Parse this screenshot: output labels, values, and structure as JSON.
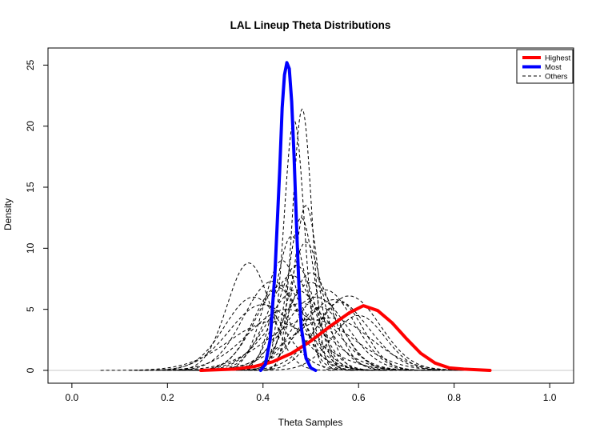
{
  "chart_data": {
    "type": "line",
    "title": "LAL Lineup Theta Distributions",
    "xlabel": "Theta Samples",
    "ylabel": "Density",
    "xlim": [
      -0.05,
      1.05
    ],
    "ylim": [
      -1.05,
      26.4
    ],
    "xticks": [
      0.0,
      0.2,
      0.4,
      0.6,
      0.8,
      1.0
    ],
    "xtick_labels": [
      "0.0",
      "0.2",
      "0.4",
      "0.6",
      "0.8",
      "1.0"
    ],
    "yticks": [
      0,
      5,
      10,
      15,
      20,
      25
    ],
    "ytick_labels": [
      "0",
      "5",
      "10",
      "15",
      "20",
      "25"
    ],
    "baseline": 0,
    "grid": false,
    "legend": {
      "position": "top-right",
      "entries": [
        {
          "label": "Highest",
          "color": "#ff0000",
          "style": "solid"
        },
        {
          "label": "Most",
          "color": "#0000ff",
          "style": "solid"
        },
        {
          "label": "Others",
          "color": "#000000",
          "style": "dashed"
        }
      ]
    },
    "series": [
      {
        "name": "Highest",
        "color": "#ff0000",
        "style": "solid",
        "x": [
          0.27,
          0.34,
          0.38,
          0.42,
          0.46,
          0.5,
          0.54,
          0.58,
          0.61,
          0.64,
          0.67,
          0.7,
          0.73,
          0.76,
          0.79,
          0.82,
          0.85,
          0.875
        ],
        "y": [
          0.0,
          0.1,
          0.3,
          0.7,
          1.4,
          2.4,
          3.6,
          4.7,
          5.3,
          4.9,
          3.9,
          2.6,
          1.4,
          0.6,
          0.2,
          0.1,
          0.05,
          0.0
        ]
      },
      {
        "name": "Most",
        "color": "#0000ff",
        "style": "solid",
        "x": [
          0.395,
          0.405,
          0.415,
          0.425,
          0.435,
          0.44,
          0.445,
          0.45,
          0.455,
          0.46,
          0.465,
          0.47,
          0.475,
          0.48,
          0.49,
          0.5,
          0.51
        ],
        "y": [
          0.0,
          0.5,
          2.5,
          8.0,
          16.5,
          21.5,
          24.2,
          25.2,
          24.7,
          22.0,
          17.5,
          12.0,
          7.0,
          3.5,
          1.0,
          0.2,
          0.0
        ]
      }
    ],
    "other_curves": [
      {
        "mu": 0.37,
        "sd": 0.045,
        "peak": 8.8
      },
      {
        "mu": 0.42,
        "sd": 0.06,
        "peak": 7.3
      },
      {
        "mu": 0.44,
        "sd": 0.055,
        "peak": 7.0
      },
      {
        "mu": 0.46,
        "sd": 0.05,
        "peak": 7.8
      },
      {
        "mu": 0.47,
        "sd": 0.06,
        "peak": 6.6
      },
      {
        "mu": 0.48,
        "sd": 0.028,
        "peak": 12.5
      },
      {
        "mu": 0.49,
        "sd": 0.025,
        "peak": 13.5
      },
      {
        "mu": 0.465,
        "sd": 0.021,
        "peak": 20.5
      },
      {
        "mu": 0.482,
        "sd": 0.02,
        "peak": 21.4
      },
      {
        "mu": 0.49,
        "sd": 0.035,
        "peak": 10.5
      },
      {
        "mu": 0.5,
        "sd": 0.055,
        "peak": 7.2
      },
      {
        "mu": 0.51,
        "sd": 0.065,
        "peak": 6.0
      },
      {
        "mu": 0.53,
        "sd": 0.06,
        "peak": 6.6
      },
      {
        "mu": 0.55,
        "sd": 0.07,
        "peak": 5.8
      },
      {
        "mu": 0.58,
        "sd": 0.065,
        "peak": 6.1
      },
      {
        "mu": 0.4,
        "sd": 0.07,
        "peak": 5.4
      },
      {
        "mu": 0.38,
        "sd": 0.06,
        "peak": 6.0
      },
      {
        "mu": 0.45,
        "sd": 0.08,
        "peak": 5.0
      },
      {
        "mu": 0.52,
        "sd": 0.05,
        "peak": 5.2
      },
      {
        "mu": 0.47,
        "sd": 0.04,
        "peak": 8.6
      },
      {
        "mu": 0.44,
        "sd": 0.038,
        "peak": 9.0
      },
      {
        "mu": 0.56,
        "sd": 0.05,
        "peak": 5.6
      },
      {
        "mu": 0.6,
        "sd": 0.055,
        "peak": 4.5
      },
      {
        "mu": 0.5,
        "sd": 0.09,
        "peak": 4.2
      },
      {
        "mu": 0.42,
        "sd": 0.09,
        "peak": 4.0
      },
      {
        "mu": 0.54,
        "sd": 0.085,
        "peak": 4.3
      },
      {
        "mu": 0.48,
        "sd": 0.07,
        "peak": 5.5
      },
      {
        "mu": 0.46,
        "sd": 0.033,
        "peak": 11.0
      },
      {
        "mu": 0.5,
        "sd": 0.045,
        "peak": 8.0
      },
      {
        "mu": 0.43,
        "sd": 0.05,
        "peak": 6.8
      }
    ]
  }
}
